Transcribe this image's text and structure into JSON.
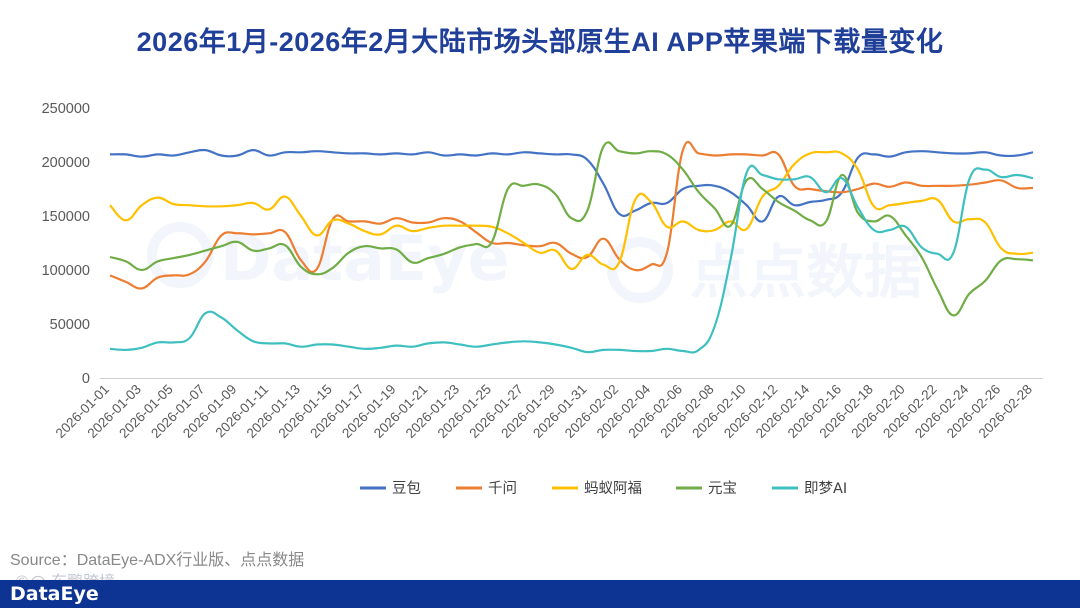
{
  "chart_data": {
    "type": "line",
    "title": "2026年1月-2026年2月大陆市场头部原生AI APP苹果端下载量变化",
    "xlabel": "",
    "ylabel": "",
    "ylim": [
      0,
      250000
    ],
    "yticks": [
      0,
      50000,
      100000,
      150000,
      200000,
      250000
    ],
    "ytick_labels": [
      "0",
      "50000",
      "100000",
      "150000",
      "200000",
      "250000"
    ],
    "grid": false,
    "legend_position": "bottom",
    "x": [
      "2026-01-01",
      "2026-01-02",
      "2026-01-03",
      "2026-01-04",
      "2026-01-05",
      "2026-01-06",
      "2026-01-07",
      "2026-01-08",
      "2026-01-09",
      "2026-01-10",
      "2026-01-11",
      "2026-01-12",
      "2026-01-13",
      "2026-01-14",
      "2026-01-15",
      "2026-01-16",
      "2026-01-17",
      "2026-01-18",
      "2026-01-19",
      "2026-01-20",
      "2026-01-21",
      "2026-01-22",
      "2026-01-23",
      "2026-01-24",
      "2026-01-25",
      "2026-01-26",
      "2026-01-27",
      "2026-01-28",
      "2026-01-29",
      "2026-01-30",
      "2026-01-31",
      "2026-02-01",
      "2026-02-02",
      "2026-02-03",
      "2026-02-04",
      "2026-02-05",
      "2026-02-06",
      "2026-02-07",
      "2026-02-08",
      "2026-02-09",
      "2026-02-10",
      "2026-02-11",
      "2026-02-12",
      "2026-02-13",
      "2026-02-14",
      "2026-02-15",
      "2026-02-16",
      "2026-02-17",
      "2026-02-18",
      "2026-02-19",
      "2026-02-20",
      "2026-02-21",
      "2026-02-22",
      "2026-02-23",
      "2026-02-24",
      "2026-02-25",
      "2026-02-26",
      "2026-02-27",
      "2026-02-28"
    ],
    "xtick_labels": [
      "2026-01-01",
      "2026-01-03",
      "2026-01-05",
      "2026-01-07",
      "2026-01-09",
      "2026-01-11",
      "2026-01-13",
      "2026-01-15",
      "2026-01-17",
      "2026-01-19",
      "2026-01-21",
      "2026-01-23",
      "2026-01-25",
      "2026-01-27",
      "2026-01-29",
      "2026-01-31",
      "2026-02-02",
      "2026-02-04",
      "2026-02-06",
      "2026-02-08",
      "2026-02-10",
      "2026-02-12",
      "2026-02-14",
      "2026-02-16",
      "2026-02-18",
      "2026-02-20",
      "2026-02-22",
      "2026-02-24",
      "2026-02-26",
      "2026-02-28"
    ],
    "series": [
      {
        "name": "豆包",
        "color": "#4472c4",
        "values": [
          207000,
          207000,
          205000,
          207000,
          206000,
          209000,
          211000,
          206000,
          206000,
          211000,
          206000,
          209000,
          209000,
          210000,
          209000,
          208000,
          208000,
          207000,
          208000,
          207000,
          209000,
          206000,
          207000,
          206000,
          208000,
          207000,
          209000,
          208000,
          207000,
          207000,
          202000,
          180000,
          152000,
          155000,
          162000,
          162000,
          175000,
          178000,
          178000,
          172000,
          160000,
          145000,
          168000,
          160000,
          163000,
          165000,
          172000,
          204000,
          207000,
          205000,
          209000,
          210000,
          209000,
          208000,
          208000,
          209000,
          206000,
          206000,
          209000
        ]
      },
      {
        "name": "千问",
        "color": "#ed7d31",
        "values": [
          95000,
          89000,
          83000,
          93000,
          95000,
          96000,
          108000,
          132000,
          134000,
          133000,
          134000,
          135000,
          109000,
          101000,
          147000,
          145000,
          145000,
          143000,
          148000,
          144000,
          144000,
          148000,
          145000,
          135000,
          125000,
          125000,
          123000,
          122000,
          125000,
          115000,
          112000,
          129000,
          110000,
          100000,
          105000,
          116000,
          211000,
          208000,
          206000,
          207000,
          207000,
          206000,
          207000,
          178000,
          175000,
          173000,
          172000,
          175000,
          180000,
          177000,
          181000,
          178000,
          178000,
          178000,
          179000,
          181000,
          183000,
          176000,
          176000
        ]
      },
      {
        "name": "蚂蚁阿福",
        "color": "#ffc000",
        "values": [
          160000,
          146000,
          160000,
          167000,
          161000,
          160000,
          159000,
          159000,
          160000,
          162000,
          156000,
          168000,
          150000,
          132000,
          146000,
          143000,
          136000,
          133000,
          141000,
          136000,
          139000,
          141000,
          141000,
          141000,
          140000,
          134000,
          125000,
          116000,
          118000,
          101000,
          114000,
          105000,
          107000,
          165000,
          163000,
          140000,
          145000,
          137000,
          137000,
          145000,
          138000,
          168000,
          178000,
          198000,
          208000,
          209000,
          208000,
          193000,
          159000,
          160000,
          162000,
          164000,
          165000,
          145000,
          147000,
          144000,
          120000,
          115000,
          116000
        ]
      },
      {
        "name": "元宝",
        "color": "#70ad47",
        "values": [
          112000,
          108000,
          100000,
          108000,
          111000,
          114000,
          118000,
          122000,
          126000,
          118000,
          120000,
          123000,
          103000,
          96000,
          102000,
          116000,
          122000,
          120000,
          119000,
          107000,
          111000,
          115000,
          121000,
          124000,
          126000,
          175000,
          178000,
          179000,
          170000,
          148000,
          155000,
          214000,
          210000,
          208000,
          210000,
          207000,
          193000,
          172000,
          157000,
          141000,
          183000,
          175000,
          163000,
          155000,
          146000,
          145000,
          188000,
          153000,
          145000,
          150000,
          132000,
          112000,
          82000,
          58000,
          78000,
          90000,
          109000,
          110000,
          109000
        ]
      },
      {
        "name": "即梦AI",
        "color": "#3fc0c0",
        "values": [
          27000,
          26000,
          28000,
          33000,
          33000,
          37000,
          60000,
          56000,
          44000,
          34000,
          32000,
          32000,
          29000,
          31000,
          31000,
          29000,
          27000,
          28000,
          30000,
          29000,
          32000,
          33000,
          31000,
          29000,
          31000,
          33000,
          34000,
          33000,
          31000,
          28000,
          24000,
          26000,
          26000,
          25000,
          25000,
          27000,
          25000,
          26000,
          48000,
          110000,
          190000,
          188000,
          184000,
          184000,
          186000,
          172000,
          185000,
          158000,
          137000,
          137000,
          140000,
          121000,
          115000,
          116000,
          184000,
          193000,
          186000,
          188000,
          185000
        ]
      }
    ]
  },
  "source_text": "Source：DataEye-ADX行业版、点点数据",
  "footer": {
    "logo": "DataEye",
    "watermark_left": "©@ 东鹏跨境"
  },
  "watermarks": {
    "left": "DataEye",
    "right": "点点数据"
  }
}
